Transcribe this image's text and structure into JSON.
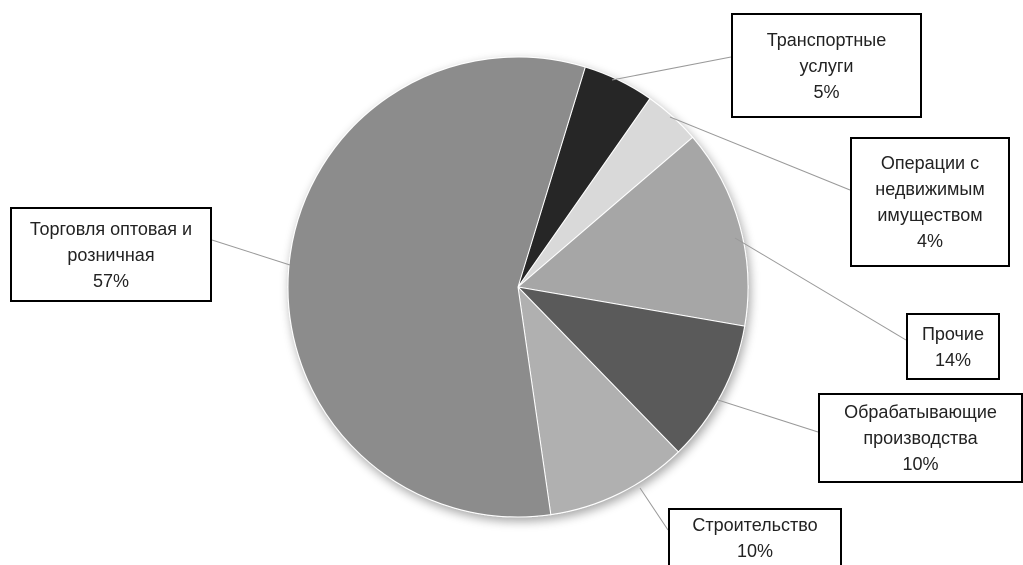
{
  "chart_data": {
    "type": "pie",
    "categories": [
      "Транспортные услуги",
      "Операции с недвижимым имуществом",
      "Прочие",
      "Обрабатывающие производства",
      "Строительство",
      "Торговля оптовая и розничная"
    ],
    "values": [
      5,
      4,
      14,
      10,
      10,
      57
    ],
    "value_labels": [
      "5%",
      "4%",
      "14%",
      "10%",
      "10%",
      "57%"
    ],
    "colors": [
      "#262626",
      "#d9d9d9",
      "#a6a6a6",
      "#5a5a5a",
      "#b0b0b0",
      "#8c8c8c"
    ]
  }
}
